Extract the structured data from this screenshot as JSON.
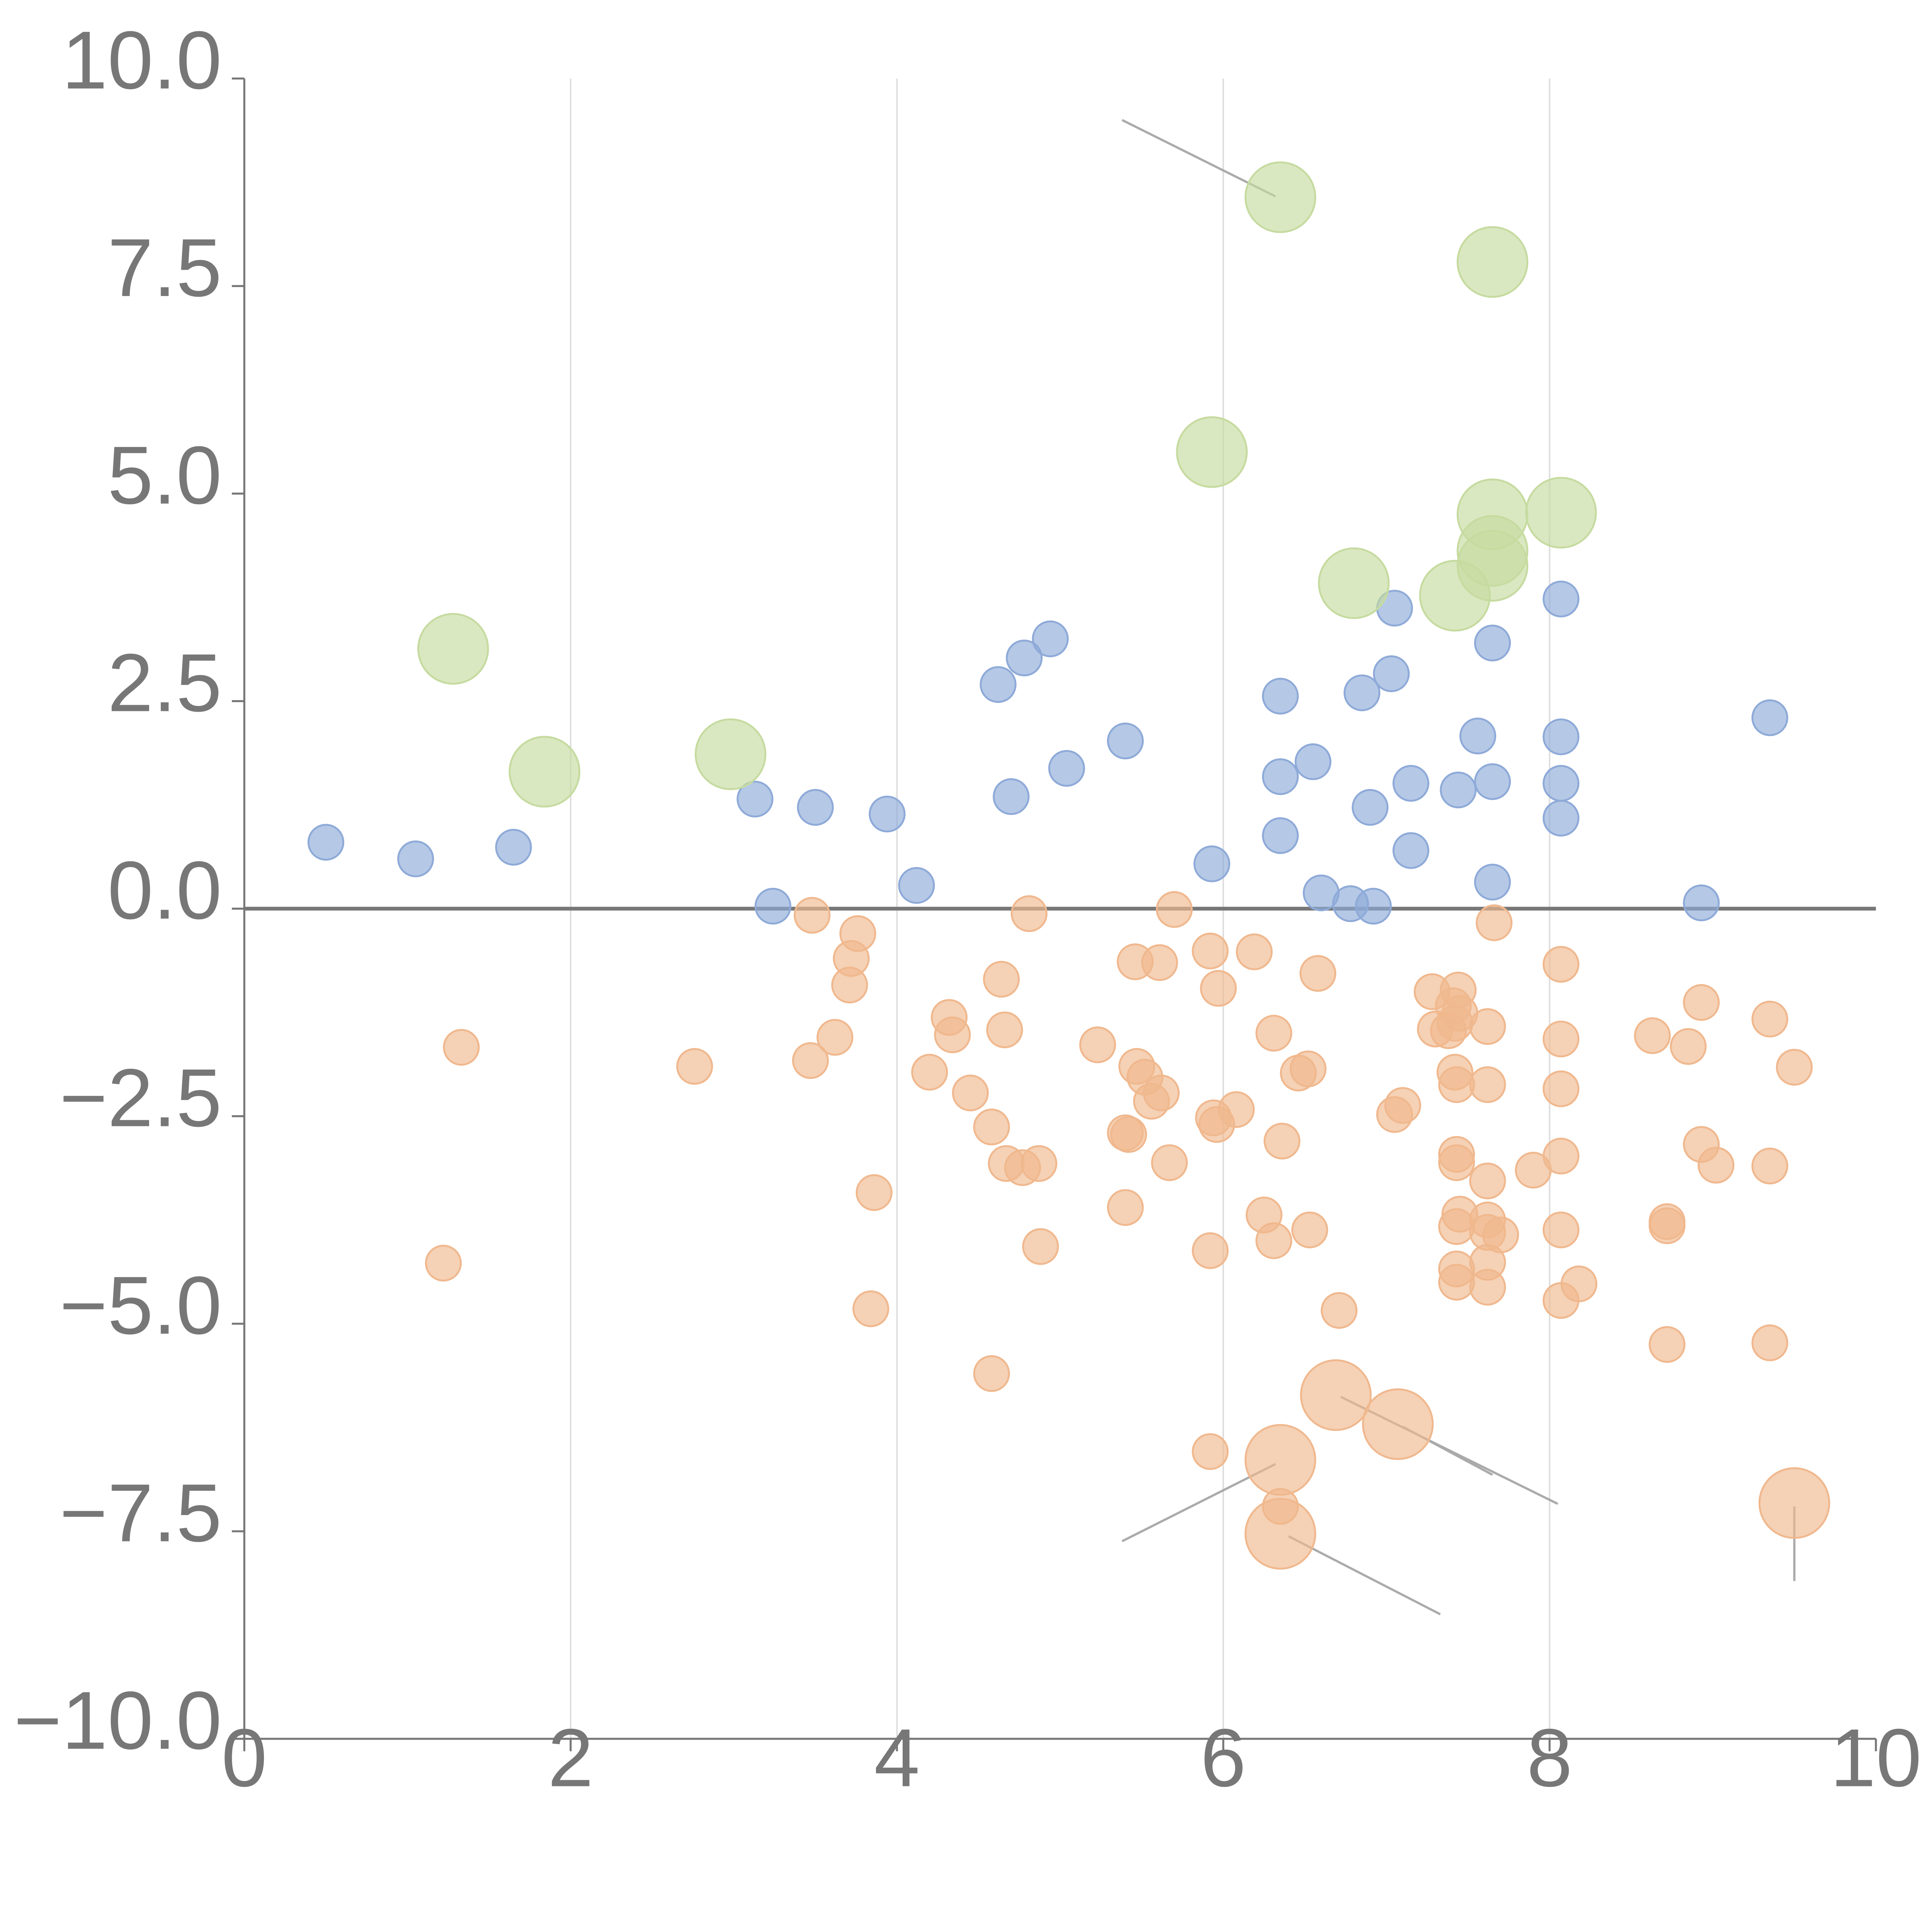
{
  "chart_data": {
    "type": "scatter",
    "title": "",
    "xlabel": "",
    "ylabel": "",
    "xlim": [
      0,
      10
    ],
    "ylim": [
      -10,
      10
    ],
    "grid": "vertical",
    "legend": "none",
    "x_ticks": [
      "0",
      "2",
      "4",
      "6",
      "8",
      "10"
    ],
    "x_tick_values": [
      0,
      2,
      4,
      6,
      8,
      10
    ],
    "y_ticks": [
      "10.0",
      "7.5",
      "5.0",
      "2.5",
      "0.0",
      "−2.5",
      "−5.0",
      "−7.5",
      "−10.0"
    ],
    "y_tick_values": [
      10,
      7.5,
      5,
      2.5,
      0,
      -2.5,
      -5,
      -7.5,
      -10
    ],
    "reference_line_y": 0,
    "series": [
      {
        "name": "positive",
        "color": "#8eaad8",
        "size": 1,
        "points": [
          [
            0.5,
            0.8
          ],
          [
            1.05,
            0.6
          ],
          [
            1.65,
            0.74
          ],
          [
            3.13,
            1.32
          ],
          [
            3.24,
            0.03
          ],
          [
            3.5,
            1.22
          ],
          [
            3.94,
            1.14
          ],
          [
            4.12,
            0.28
          ],
          [
            4.62,
            2.7
          ],
          [
            4.7,
            1.35
          ],
          [
            4.78,
            3.02
          ],
          [
            4.94,
            3.25
          ],
          [
            5.04,
            1.69
          ],
          [
            5.4,
            2.02
          ],
          [
            5.93,
            0.54
          ],
          [
            6.35,
            2.56
          ],
          [
            6.35,
            1.59
          ],
          [
            6.35,
            0.88
          ],
          [
            6.55,
            1.77
          ],
          [
            6.6,
            0.19
          ],
          [
            6.78,
            0.06
          ],
          [
            6.85,
            2.6
          ],
          [
            6.9,
            1.22
          ],
          [
            6.92,
            0.03
          ],
          [
            7.03,
            2.83
          ],
          [
            7.05,
            3.62
          ],
          [
            7.15,
            1.51
          ],
          [
            7.15,
            0.7
          ],
          [
            7.44,
            1.43
          ],
          [
            7.56,
            2.08
          ],
          [
            7.65,
            3.2
          ],
          [
            7.65,
            1.53
          ],
          [
            7.65,
            0.32
          ],
          [
            8.07,
            3.73
          ],
          [
            8.07,
            2.07
          ],
          [
            8.07,
            1.51
          ],
          [
            8.07,
            1.09
          ],
          [
            8.93,
            0.07
          ],
          [
            9.35,
            2.3
          ]
        ]
      },
      {
        "name": "negative",
        "color": "#f0b88e",
        "size": 1,
        "points": [
          [
            1.33,
            -1.67
          ],
          [
            1.22,
            -4.27
          ],
          [
            2.76,
            -1.9
          ],
          [
            3.48,
            -0.08
          ],
          [
            3.47,
            -1.83
          ],
          [
            3.62,
            -1.55
          ],
          [
            3.72,
            -0.6
          ],
          [
            3.71,
            -0.92
          ],
          [
            3.76,
            -0.3
          ],
          [
            3.84,
            -4.82
          ],
          [
            3.86,
            -3.42
          ],
          [
            4.2,
            -1.97
          ],
          [
            4.32,
            -1.31
          ],
          [
            4.34,
            -1.52
          ],
          [
            4.45,
            -2.22
          ],
          [
            4.58,
            -2.63
          ],
          [
            4.58,
            -5.6
          ],
          [
            4.64,
            -0.85
          ],
          [
            4.66,
            -1.46
          ],
          [
            4.67,
            -3.07
          ],
          [
            4.77,
            -3.12
          ],
          [
            4.81,
            -0.06
          ],
          [
            4.87,
            -3.07
          ],
          [
            4.88,
            -4.07
          ],
          [
            5.23,
            -1.64
          ],
          [
            5.4,
            -2.7
          ],
          [
            5.42,
            -2.72
          ],
          [
            5.4,
            -3.6
          ],
          [
            5.46,
            -0.64
          ],
          [
            5.47,
            -1.9
          ],
          [
            5.52,
            -2.03
          ],
          [
            5.56,
            -2.32
          ],
          [
            5.62,
            -2.22
          ],
          [
            5.61,
            -0.65
          ],
          [
            5.67,
            -3.06
          ],
          [
            5.7,
            -0.01
          ],
          [
            5.92,
            -0.51
          ],
          [
            5.92,
            -4.12
          ],
          [
            5.92,
            -6.54
          ],
          [
            5.94,
            -2.52
          ],
          [
            5.97,
            -0.96
          ],
          [
            5.96,
            -2.6
          ],
          [
            6.08,
            -2.42
          ],
          [
            6.19,
            -0.52
          ],
          [
            6.25,
            -3.69
          ],
          [
            6.31,
            -1.5
          ],
          [
            6.31,
            -4.0
          ],
          [
            6.36,
            -2.8
          ],
          [
            6.35,
            -7.2
          ],
          [
            6.46,
            -1.98
          ],
          [
            6.52,
            -1.93
          ],
          [
            6.53,
            -3.87
          ],
          [
            6.58,
            -0.78
          ],
          [
            6.71,
            -4.84
          ],
          [
            7.05,
            -2.48
          ],
          [
            7.1,
            -2.37
          ],
          [
            7.28,
            -1.0
          ],
          [
            7.3,
            -1.45
          ],
          [
            7.38,
            -1.47
          ],
          [
            7.42,
            -1.38
          ],
          [
            7.44,
            -0.98
          ],
          [
            7.45,
            -1.26
          ],
          [
            7.41,
            -1.17
          ],
          [
            7.42,
            -1.97
          ],
          [
            7.43,
            -2.12
          ],
          [
            7.43,
            -2.96
          ],
          [
            7.43,
            -3.06
          ],
          [
            7.45,
            -3.68
          ],
          [
            7.43,
            -3.83
          ],
          [
            7.43,
            -4.34
          ],
          [
            7.43,
            -4.5
          ],
          [
            7.62,
            -1.42
          ],
          [
            7.62,
            -2.12
          ],
          [
            7.62,
            -3.28
          ],
          [
            7.62,
            -3.75
          ],
          [
            7.62,
            -3.9
          ],
          [
            7.62,
            -4.26
          ],
          [
            7.62,
            -4.56
          ],
          [
            7.7,
            -3.93
          ],
          [
            7.66,
            -0.17
          ],
          [
            7.9,
            -3.15
          ],
          [
            8.07,
            -0.67
          ],
          [
            8.07,
            -1.57
          ],
          [
            8.07,
            -2.17
          ],
          [
            8.07,
            -2.98
          ],
          [
            8.07,
            -3.87
          ],
          [
            8.07,
            -4.72
          ],
          [
            8.18,
            -4.52
          ],
          [
            8.63,
            -1.53
          ],
          [
            8.72,
            -3.77
          ],
          [
            8.72,
            -3.82
          ],
          [
            8.72,
            -5.25
          ],
          [
            8.85,
            -1.66
          ],
          [
            8.93,
            -1.13
          ],
          [
            8.93,
            -2.84
          ],
          [
            9.02,
            -3.09
          ],
          [
            9.35,
            -1.33
          ],
          [
            9.35,
            -3.1
          ],
          [
            9.35,
            -5.23
          ],
          [
            9.5,
            -1.91
          ]
        ]
      },
      {
        "name": "positive-outliers",
        "color": "#c6dba0",
        "size": 2,
        "points": [
          [
            1.28,
            3.13
          ],
          [
            1.84,
            1.65
          ],
          [
            2.98,
            1.86
          ],
          [
            5.93,
            5.5
          ],
          [
            6.35,
            8.57
          ],
          [
            6.8,
            3.92
          ],
          [
            7.42,
            3.77
          ],
          [
            7.65,
            7.79
          ],
          [
            7.65,
            4.75
          ],
          [
            7.65,
            4.13
          ],
          [
            7.65,
            4.31
          ],
          [
            8.07,
            4.77
          ]
        ]
      },
      {
        "name": "negative-outliers",
        "color": "#f0b88e",
        "size": 2,
        "points": [
          [
            6.35,
            -6.64
          ],
          [
            6.35,
            -7.53
          ],
          [
            6.69,
            -5.86
          ],
          [
            7.07,
            -6.21
          ],
          [
            9.5,
            -7.16
          ]
        ]
      }
    ],
    "label_leaders": [
      {
        "x1": 5.38,
        "y1": 9.5,
        "x2": 6.32,
        "y2": 8.58,
        "color": "#aaaaaa"
      },
      {
        "x1": 5.38,
        "y1": -7.62,
        "x2": 6.32,
        "y2": -6.69,
        "color": "#aaaaaa"
      },
      {
        "x1": 6.4,
        "y1": -7.56,
        "x2": 7.33,
        "y2": -8.5,
        "color": "#aaaaaa"
      },
      {
        "x1": 6.72,
        "y1": -5.88,
        "x2": 8.05,
        "y2": -7.17,
        "color": "#aaaaaa"
      },
      {
        "x1": 7.1,
        "y1": -6.24,
        "x2": 7.65,
        "y2": -6.82,
        "color": "#aaaaaa"
      },
      {
        "x1": 9.5,
        "y1": -7.2,
        "x2": 9.5,
        "y2": -8.1,
        "color": "#aaaaaa"
      },
      {
        "x1": 1.35,
        "y1": 3.18,
        "x2": 1.47,
        "y2": 3.35,
        "color": "#ffffff"
      },
      {
        "x1": 3.02,
        "y1": 1.88,
        "x2": 3.18,
        "y2": 1.93,
        "color": "#ffffff"
      },
      {
        "x1": 6.78,
        "y1": 3.95,
        "x2": 6.67,
        "y2": 4.15,
        "color": "#ffffff"
      },
      {
        "x1": 7.44,
        "y1": 3.8,
        "x2": 7.62,
        "y2": 3.68,
        "color": "#ffffff"
      },
      {
        "x1": 7.65,
        "y1": 4.35,
        "x2": 7.72,
        "y2": 4.55,
        "color": "#ffffff"
      },
      {
        "x1": 8.1,
        "y1": 4.8,
        "x2": 8.25,
        "y2": 4.97,
        "color": "#ffffff"
      }
    ],
    "colors": {
      "axis": "#777777",
      "grid": "#dddddd",
      "zero_line": "#777777"
    }
  }
}
